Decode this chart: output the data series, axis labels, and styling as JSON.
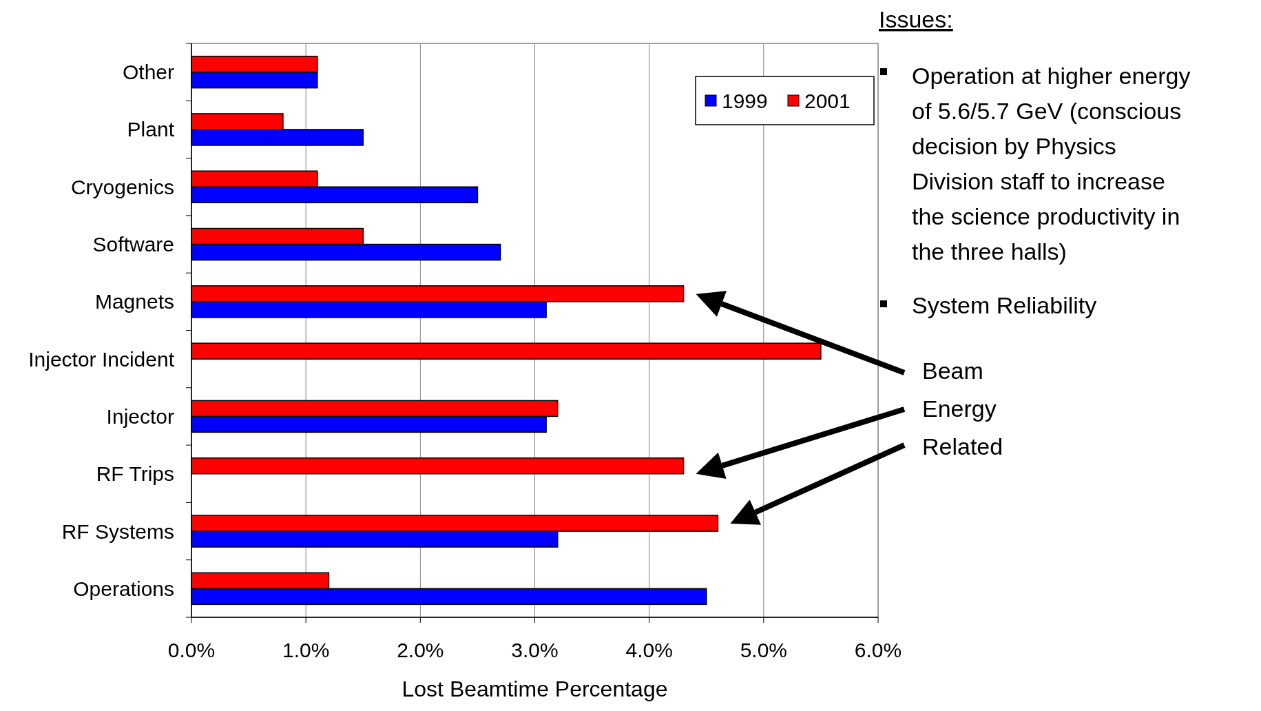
{
  "chart_data": {
    "type": "bar",
    "orientation": "horizontal",
    "xlabel": "Lost Beamtime Percentage",
    "categories": [
      "Other",
      "Plant",
      "Cryogenics",
      "Software",
      "Magnets",
      "Injector Incident",
      "Injector",
      "RF Trips",
      "RF Systems",
      "Operations"
    ],
    "series": [
      {
        "name": "1999",
        "color": "#0000ff",
        "values": [
          1.1,
          1.5,
          2.5,
          2.7,
          3.1,
          null,
          3.1,
          null,
          3.2,
          4.5
        ]
      },
      {
        "name": "2001",
        "color": "#ff0000",
        "values": [
          1.1,
          0.8,
          1.1,
          1.5,
          4.3,
          5.5,
          3.2,
          4.3,
          4.6,
          1.2
        ]
      }
    ],
    "xlim": [
      0,
      6
    ],
    "xticks": [
      {
        "value": 0,
        "label": "0.0%"
      },
      {
        "value": 1,
        "label": "1.0%"
      },
      {
        "value": 2,
        "label": "2.0%"
      },
      {
        "value": 3,
        "label": "3.0%"
      },
      {
        "value": 4,
        "label": "4.0%"
      },
      {
        "value": 5,
        "label": "5.0%"
      },
      {
        "value": 6,
        "label": "6.0%"
      }
    ],
    "grid": "x",
    "legend": "top right",
    "annotations": [
      "Issues:",
      "Operation at higher energy of 5.6/5.7 GeV (conscious decision by Physics Division staff to increase the science productivity in the three halls)",
      "System Reliability",
      "Beam Energy Related"
    ]
  }
}
